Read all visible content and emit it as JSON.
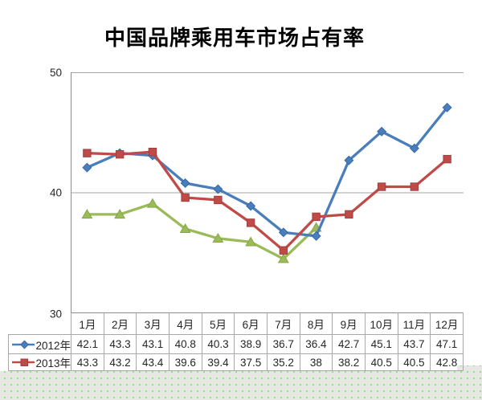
{
  "title": "中国品牌乘用车市场占有率",
  "chart_data": {
    "type": "line",
    "title": "中国品牌乘用车市场占有率",
    "categories": [
      "1月",
      "2月",
      "3月",
      "4月",
      "5月",
      "6月",
      "7月",
      "8月",
      "9月",
      "10月",
      "11月",
      "12月"
    ],
    "series": [
      {
        "name": "2012年",
        "color": "#4a7ebb",
        "edge": "#3a69a6",
        "marker": "diamond",
        "z_index": 2,
        "values": [
          42.1,
          43.3,
          43.1,
          40.8,
          40.3,
          38.9,
          36.7,
          36.4,
          42.7,
          45.1,
          43.7,
          47.1
        ]
      },
      {
        "name": "2013年",
        "color": "#be4b48",
        "edge": "#a53f3c",
        "marker": "square",
        "z_index": 3,
        "values": [
          43.3,
          43.2,
          43.4,
          39.6,
          39.4,
          37.5,
          35.2,
          38,
          38.2,
          40.5,
          40.5,
          42.8
        ]
      },
      {
        "name": "",
        "color": "#9bbb59",
        "edge": "#87a648",
        "marker": "triangle",
        "z_index": 1,
        "estimated": true,
        "values": [
          38.2,
          38.2,
          39.1,
          37.0,
          36.2,
          35.9,
          34.5,
          37.1
        ]
      }
    ],
    "y_axis": {
      "min": 30,
      "max": 50,
      "step": 10,
      "ticks": [
        50,
        40,
        30
      ]
    },
    "x_axis_labels_shown_in": "data-table-header",
    "gridlines": "horizontal",
    "legend_position": "data-table-left"
  },
  "data_table": {
    "rows": [
      {
        "label": "2012年",
        "marker": "diamond",
        "color": "#4a7ebb",
        "edge": "#3a69a6",
        "cells": [
          "42.1",
          "43.3",
          "43.1",
          "40.8",
          "40.3",
          "38.9",
          "36.7",
          "36.4",
          "42.7",
          "45.1",
          "43.7",
          "47.1"
        ]
      },
      {
        "label": "2013年",
        "marker": "square",
        "color": "#be4b48",
        "edge": "#a53f3c",
        "cells": [
          "43.3",
          "43.2",
          "43.4",
          "39.6",
          "39.4",
          "37.5",
          "35.2",
          "38",
          "38.2",
          "40.5",
          "40.5",
          "42.8"
        ]
      }
    ]
  },
  "colors": {
    "axis": "#8c8c8c",
    "gridline": "#a6a6a6",
    "table_border": "#a8a8a8",
    "text": "#262626",
    "title": "#000000",
    "chart_canvas": "#ffffff",
    "sheet_base": "#e7e8e4",
    "sheet_dot": "#94e884"
  }
}
